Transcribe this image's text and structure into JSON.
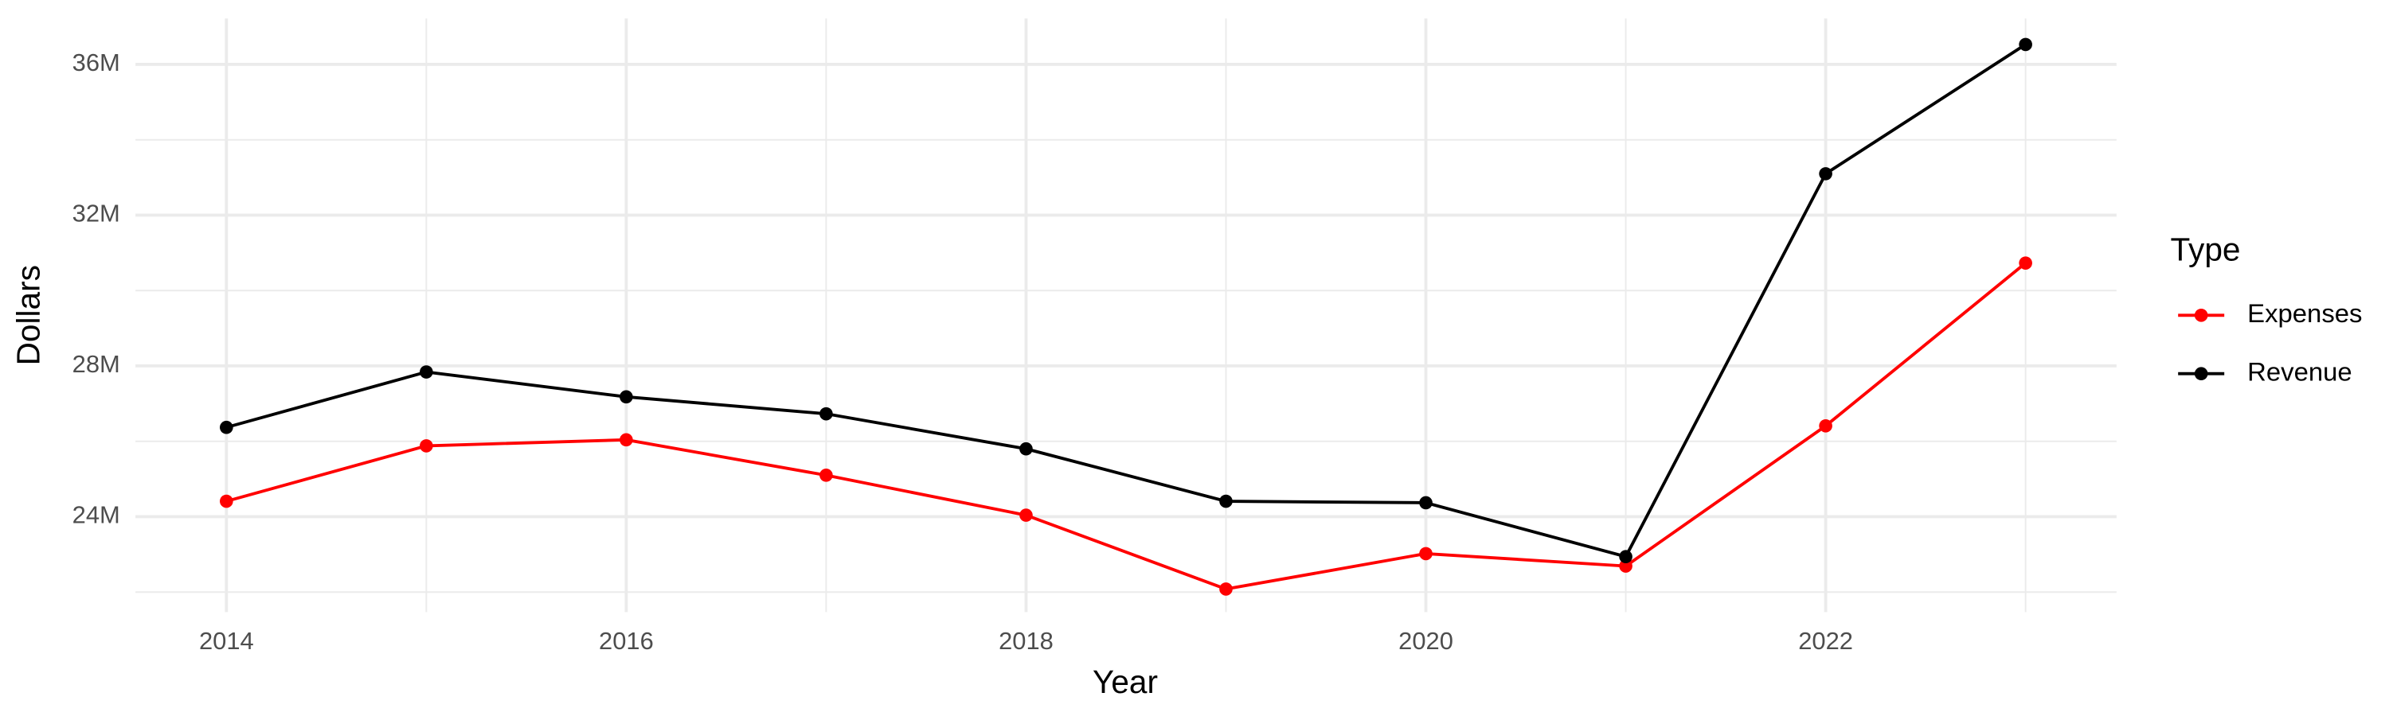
{
  "chart_data": {
    "type": "line",
    "x_label": "Year",
    "y_label": "Dollars",
    "legend_title": "Type",
    "legend_position": "right",
    "grid": true,
    "x": [
      2014,
      2015,
      2016,
      2017,
      2018,
      2019,
      2020,
      2021,
      2022,
      2023
    ],
    "series": [
      {
        "name": "Expenses",
        "color": "#ff0000",
        "values": [
          24410000,
          25880000,
          26040000,
          25100000,
          24040000,
          22080000,
          23020000,
          22690000,
          26410000,
          30730000
        ]
      },
      {
        "name": "Revenue",
        "color": "#000000",
        "values": [
          26370000,
          27840000,
          27180000,
          26730000,
          25800000,
          24410000,
          24370000,
          22940000,
          33100000,
          36530000
        ]
      }
    ],
    "xlim": [
      2013.545,
      2023.455
    ],
    "xticks": [
      2014,
      2016,
      2018,
      2020,
      2022
    ],
    "x_minor_ticks": [
      2015,
      2017,
      2019,
      2021,
      2023
    ],
    "ylim": [
      21470000,
      37220000
    ],
    "yticks": [
      {
        "value": 24000000,
        "label": "24M"
      },
      {
        "value": 28000000,
        "label": "28M"
      },
      {
        "value": 32000000,
        "label": "32M"
      },
      {
        "value": 36000000,
        "label": "36M"
      }
    ],
    "y_minor_ticks": [
      22000000,
      26000000,
      30000000,
      34000000
    ]
  }
}
